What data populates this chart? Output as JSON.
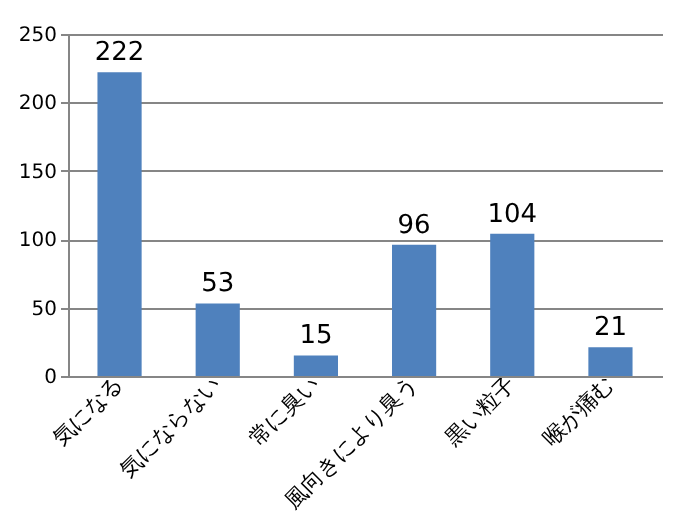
{
  "chart_data": {
    "type": "bar",
    "categories": [
      "気になる",
      "気にならない",
      "常に臭い",
      "風向きにより臭う",
      "黒い粒子",
      "喉が痛む"
    ],
    "values": [
      222,
      53,
      15,
      96,
      104,
      21
    ],
    "color": "#4f81bd",
    "ylim": [
      0,
      250
    ],
    "yticks": [
      0,
      50,
      100,
      150,
      200,
      250
    ],
    "grid": "y",
    "data_labels": true
  }
}
